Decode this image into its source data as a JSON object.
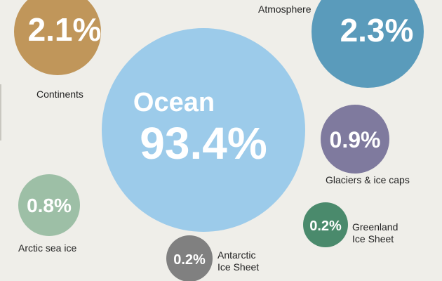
{
  "chart_data": {
    "type": "bubble",
    "title": "",
    "unit": "%",
    "items": [
      {
        "key": "ocean",
        "name": "Ocean",
        "value": 93.4,
        "value_text": "93.4%",
        "color": "#9ccbea"
      },
      {
        "key": "continents",
        "name": "Continents",
        "value": 2.1,
        "value_text": "2.1%",
        "color": "#c0965a"
      },
      {
        "key": "atmosphere",
        "name": "Atmosphere",
        "value": 2.3,
        "value_text": "2.3%",
        "color": "#5a9bbb"
      },
      {
        "key": "glaciers",
        "name": "Glaciers & ice caps",
        "value": 0.9,
        "value_text": "0.9%",
        "color": "#7f7a9e"
      },
      {
        "key": "arctic",
        "name": "Arctic sea ice",
        "value": 0.8,
        "value_text": "0.8%",
        "color": "#9dbfa6"
      },
      {
        "key": "greenland",
        "name": "Greenland Ice Sheet",
        "name_lines": [
          "Greenland",
          "Ice Sheet"
        ],
        "value": 0.2,
        "value_text": "0.2%",
        "color": "#4a8a6c"
      },
      {
        "key": "antarctic",
        "name": "Antarctic Ice Sheet",
        "name_lines": [
          "Antarctic",
          "Ice Sheet"
        ],
        "value": 0.2,
        "value_text": "0.2%",
        "color": "#808080"
      }
    ]
  }
}
